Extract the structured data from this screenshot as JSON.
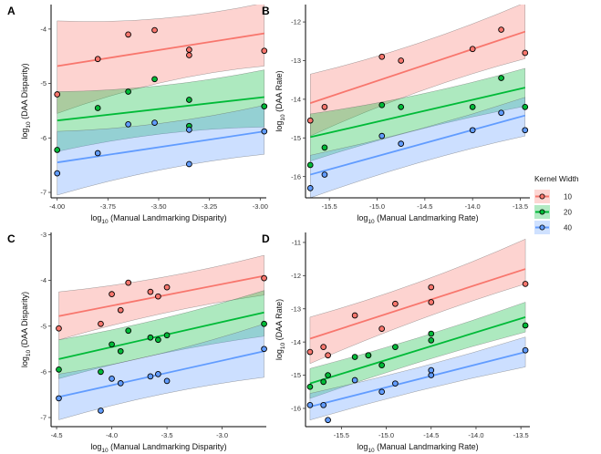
{
  "legend": {
    "title": "Kernel Width",
    "items": [
      {
        "label": "10",
        "color": "#F8766D",
        "fill": "#F8766D"
      },
      {
        "label": "20",
        "color": "#00BA38",
        "fill": "#00BA38"
      },
      {
        "label": "40",
        "color": "#619CFF",
        "fill": "#619CFF"
      }
    ]
  },
  "chart_data": [
    {
      "panel": "A",
      "type": "scatter",
      "xlabel": "log10 (Manual Landmarking Disparity)",
      "ylabel": "log10 (DAA Disparity)",
      "xlim": [
        -4.03,
        -2.97
      ],
      "ylim": [
        -7.1,
        -3.55
      ],
      "xticks": [
        -4.0,
        -3.75,
        -3.5,
        -3.25,
        -3.0
      ],
      "xtick_labels": [
        "-4.00",
        "-3.75",
        "-3.50",
        "-3.25",
        "-3.00"
      ],
      "yticks": [
        -7,
        -6,
        -5,
        -4
      ],
      "ytick_labels": [
        "-7",
        "-6",
        "-5",
        "-4"
      ],
      "series": [
        {
          "name": "10",
          "points": [
            [
              -4.0,
              -5.2
            ],
            [
              -3.8,
              -4.55
            ],
            [
              -3.65,
              -4.1
            ],
            [
              -3.52,
              -4.02
            ],
            [
              -3.35,
              -4.38
            ],
            [
              -3.35,
              -4.48
            ],
            [
              -2.98,
              -4.4
            ]
          ],
          "fit": [
            -4.0,
            -4.68,
            -2.98,
            -4.08
          ],
          "band_lo": [
            -5.55,
            -4.68
          ],
          "band_hi": [
            -3.85,
            -3.52
          ]
        },
        {
          "name": "20",
          "points": [
            [
              -4.0,
              -6.22
            ],
            [
              -3.8,
              -5.45
            ],
            [
              -3.65,
              -5.15
            ],
            [
              -3.52,
              -4.92
            ],
            [
              -3.35,
              -5.3
            ],
            [
              -3.35,
              -5.78
            ],
            [
              -2.98,
              -5.42
            ]
          ],
          "fit": [
            -4.0,
            -5.68,
            -2.98,
            -5.25
          ],
          "band_lo": [
            -6.25,
            -5.8
          ],
          "band_hi": [
            -5.15,
            -4.75
          ]
        },
        {
          "name": "40",
          "points": [
            [
              -4.0,
              -6.65
            ],
            [
              -3.8,
              -6.28
            ],
            [
              -3.65,
              -5.75
            ],
            [
              -3.52,
              -5.72
            ],
            [
              -3.35,
              -6.48
            ],
            [
              -3.35,
              -5.85
            ],
            [
              -2.98,
              -5.88
            ]
          ],
          "fit": [
            -4.0,
            -6.45,
            -2.98,
            -5.88
          ],
          "band_lo": [
            -7.05,
            -6.3
          ],
          "band_hi": [
            -5.88,
            -5.4
          ]
        }
      ]
    },
    {
      "panel": "B",
      "type": "scatter",
      "xlabel": "log10 (Manual Landmarking Rate)",
      "ylabel": "log10 (DAA Rate)",
      "xlim": [
        -15.75,
        -13.4
      ],
      "ylim": [
        -16.55,
        -11.55
      ],
      "xticks": [
        -15.5,
        -15.0,
        -14.5,
        -14.0,
        -13.5
      ],
      "xtick_labels": [
        "-15.5",
        "-15.0",
        "-14.5",
        "-14.0",
        "-13.5"
      ],
      "yticks": [
        -16,
        -15,
        -14,
        -13,
        -12
      ],
      "ytick_labels": [
        "-16",
        "-15",
        "-14",
        "-13",
        "-12"
      ],
      "series": [
        {
          "name": "10",
          "points": [
            [
              -15.7,
              -14.55
            ],
            [
              -15.55,
              -14.2
            ],
            [
              -14.95,
              -12.9
            ],
            [
              -14.75,
              -13.0
            ],
            [
              -14.0,
              -12.7
            ],
            [
              -13.7,
              -12.2
            ],
            [
              -13.45,
              -12.8
            ]
          ],
          "fit": [
            -15.7,
            -14.1,
            -13.45,
            -12.25
          ],
          "band_lo": [
            -14.95,
            -12.95
          ],
          "band_hi": [
            -13.35,
            -11.5
          ]
        },
        {
          "name": "20",
          "points": [
            [
              -15.7,
              -15.7
            ],
            [
              -15.55,
              -15.25
            ],
            [
              -14.95,
              -14.15
            ],
            [
              -14.75,
              -14.2
            ],
            [
              -14.0,
              -14.2
            ],
            [
              -13.7,
              -13.45
            ],
            [
              -13.45,
              -14.2
            ]
          ],
          "fit": [
            -15.7,
            -14.98,
            -13.45,
            -13.7
          ],
          "band_lo": [
            -15.6,
            -14.18
          ],
          "band_hi": [
            -14.38,
            -13.2
          ]
        },
        {
          "name": "40",
          "points": [
            [
              -15.7,
              -16.3
            ],
            [
              -15.55,
              -15.95
            ],
            [
              -14.95,
              -14.95
            ],
            [
              -14.75,
              -15.15
            ],
            [
              -14.0,
              -14.8
            ],
            [
              -13.7,
              -14.35
            ],
            [
              -13.45,
              -14.8
            ]
          ],
          "fit": [
            -15.7,
            -15.95,
            -13.45,
            -14.42
          ],
          "band_lo": [
            -16.55,
            -14.95
          ],
          "band_hi": [
            -15.45,
            -13.95
          ]
        }
      ]
    },
    {
      "panel": "C",
      "type": "scatter",
      "xlabel": "log10 (Manual Landmarking Disparity)",
      "ylabel": "log10 (DAA Disparity)",
      "xlim": [
        -4.55,
        -2.6
      ],
      "ylim": [
        -7.2,
        -2.95
      ],
      "xticks": [
        -4.5,
        -4.0,
        -3.5,
        -3.0
      ],
      "xtick_labels": [
        "-4.5",
        "-4.0",
        "-3.5",
        "-3.0"
      ],
      "yticks": [
        -7,
        -6,
        -5,
        -4,
        -3
      ],
      "ytick_labels": [
        "-7",
        "-6",
        "-5",
        "-4",
        "-3"
      ],
      "series": [
        {
          "name": "10",
          "points": [
            [
              -4.48,
              -5.05
            ],
            [
              -4.1,
              -4.95
            ],
            [
              -4.0,
              -4.3
            ],
            [
              -3.92,
              -4.65
            ],
            [
              -3.85,
              -4.05
            ],
            [
              -3.65,
              -4.25
            ],
            [
              -3.58,
              -4.35
            ],
            [
              -3.5,
              -4.15
            ],
            [
              -2.62,
              -3.95
            ]
          ],
          "fit": [
            -4.48,
            -4.78,
            -2.62,
            -3.9
          ],
          "band_lo": [
            -5.3,
            -4.32
          ],
          "band_hi": [
            -4.25,
            -3.45
          ]
        },
        {
          "name": "20",
          "points": [
            [
              -4.48,
              -5.95
            ],
            [
              -4.1,
              -6.0
            ],
            [
              -4.0,
              -5.4
            ],
            [
              -3.92,
              -5.55
            ],
            [
              -3.85,
              -5.1
            ],
            [
              -3.65,
              -5.25
            ],
            [
              -3.58,
              -5.3
            ],
            [
              -3.5,
              -5.2
            ],
            [
              -2.62,
              -4.95
            ]
          ],
          "fit": [
            -4.48,
            -5.72,
            -2.62,
            -4.7
          ],
          "band_lo": [
            -6.15,
            -5.22
          ],
          "band_hi": [
            -5.3,
            -4.22
          ]
        },
        {
          "name": "40",
          "points": [
            [
              -4.48,
              -6.58
            ],
            [
              -4.1,
              -6.85
            ],
            [
              -4.0,
              -6.15
            ],
            [
              -3.92,
              -6.25
            ],
            [
              -3.65,
              -6.1
            ],
            [
              -3.58,
              -6.05
            ],
            [
              -3.5,
              -6.2
            ],
            [
              -2.62,
              -5.5
            ]
          ],
          "fit": [
            -4.48,
            -6.55,
            -2.62,
            -5.55
          ],
          "band_lo": [
            -7.05,
            -6.12
          ],
          "band_hi": [
            -6.05,
            -4.95
          ]
        }
      ]
    },
    {
      "panel": "D",
      "type": "scatter",
      "xlabel": "log10 (Manual Landmarking Rate)",
      "ylabel": "log10 (DAA Rate)",
      "xlim": [
        -15.9,
        -13.4
      ],
      "ylim": [
        -16.55,
        -10.7
      ],
      "xticks": [
        -15.5,
        -15.0,
        -14.5,
        -14.0,
        -13.5
      ],
      "xtick_labels": [
        "-15.5",
        "-15.0",
        "-14.5",
        "-14.0",
        "-13.5"
      ],
      "yticks": [
        -16,
        -15,
        -14,
        -13,
        -12,
        -11
      ],
      "ytick_labels": [
        "-16",
        "-15",
        "-14",
        "-13",
        "-12",
        "-11"
      ],
      "series": [
        {
          "name": "10",
          "points": [
            [
              -15.85,
              -14.3
            ],
            [
              -15.7,
              -14.15
            ],
            [
              -15.65,
              -14.4
            ],
            [
              -15.35,
              -13.2
            ],
            [
              -15.2,
              -14.4
            ],
            [
              -15.05,
              -13.6
            ],
            [
              -14.9,
              -12.85
            ],
            [
              -14.5,
              -12.8
            ],
            [
              -14.5,
              -12.35
            ],
            [
              -13.45,
              -12.25
            ]
          ],
          "fit": [
            -15.85,
            -13.9,
            -13.45,
            -11.8
          ],
          "band_lo": [
            -14.65,
            -12.25
          ],
          "band_hi": [
            -13.25,
            -10.9
          ]
        },
        {
          "name": "20",
          "points": [
            [
              -15.85,
              -15.35
            ],
            [
              -15.7,
              -15.2
            ],
            [
              -15.65,
              -15.0
            ],
            [
              -15.35,
              -14.45
            ],
            [
              -15.2,
              -14.4
            ],
            [
              -15.05,
              -14.7
            ],
            [
              -14.9,
              -14.15
            ],
            [
              -14.5,
              -13.75
            ],
            [
              -14.5,
              -13.95
            ],
            [
              -13.45,
              -13.5
            ]
          ],
          "fit": [
            -15.85,
            -15.25,
            -13.45,
            -13.25
          ],
          "band_lo": [
            -15.7,
            -13.7
          ],
          "band_hi": [
            -14.8,
            -12.8
          ]
        },
        {
          "name": "40",
          "points": [
            [
              -15.85,
              -15.9
            ],
            [
              -15.7,
              -15.9
            ],
            [
              -15.65,
              -16.35
            ],
            [
              -15.35,
              -15.15
            ],
            [
              -15.05,
              -15.5
            ],
            [
              -14.9,
              -15.25
            ],
            [
              -14.5,
              -15.0
            ],
            [
              -14.5,
              -14.85
            ],
            [
              -13.45,
              -14.25
            ]
          ],
          "fit": [
            -15.85,
            -15.95,
            -13.45,
            -14.3
          ],
          "band_lo": [
            -16.35,
            -14.75
          ],
          "band_hi": [
            -15.55,
            -13.85
          ]
        }
      ]
    }
  ]
}
